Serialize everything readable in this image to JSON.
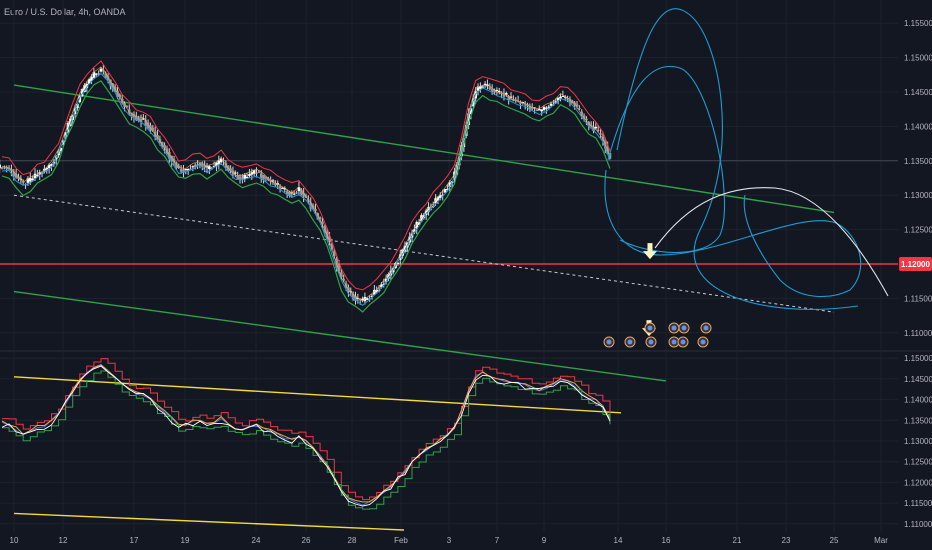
{
  "header": {
    "symbol_title": "Euro / U.S. Dollar, 4h, OANDA"
  },
  "colors": {
    "background": "#131722",
    "grid": "#1e222d",
    "candle": "#d1d4dc",
    "channel_green": "#2ea34a",
    "resistance_red": "#f23645",
    "projection_blue": "#1f9bd1",
    "projection_white": "#e0e3eb",
    "arrow": "#fff3c4",
    "trend_yellow": "#f5d939",
    "axis_text": "#b2b5be"
  },
  "chart_data": [
    {
      "type": "candlestick",
      "title": "",
      "x_axis": {
        "labels": [
          "10",
          "12",
          "17",
          "19",
          "24",
          "26",
          "28",
          "Feb",
          "3",
          "7",
          "9",
          "14",
          "16",
          "21",
          "23",
          "25",
          "Mar"
        ]
      },
      "y_axis": {
        "labels": [
          "1.15500",
          "1.15000",
          "1.14500",
          "1.14000",
          "1.13500",
          "1.13000",
          "1.12500",
          "1.12000",
          "1.11500",
          "1.11000"
        ],
        "range": [
          1.1075,
          1.1575
        ]
      },
      "price_line": {
        "value": 1.12,
        "label": "1.12000"
      },
      "series": [
        {
          "kind": "candles",
          "close_path": [
            1.1342,
            1.1338,
            1.1327,
            1.1316,
            1.1322,
            1.133,
            1.1336,
            1.1346,
            1.1364,
            1.1392,
            1.1418,
            1.1444,
            1.1462,
            1.1475,
            1.1482,
            1.1468,
            1.1452,
            1.1434,
            1.142,
            1.1412,
            1.1409,
            1.1398,
            1.1382,
            1.1368,
            1.1352,
            1.1338,
            1.1336,
            1.1344,
            1.1346,
            1.1338,
            1.1342,
            1.1351,
            1.1339,
            1.1329,
            1.1324,
            1.133,
            1.1334,
            1.1327,
            1.132,
            1.1313,
            1.1306,
            1.1302,
            1.1308,
            1.1294,
            1.128,
            1.1262,
            1.124,
            1.1208,
            1.1178,
            1.116,
            1.115,
            1.1146,
            1.1152,
            1.1162,
            1.1174,
            1.1188,
            1.1206,
            1.1224,
            1.1246,
            1.1262,
            1.1276,
            1.1288,
            1.13,
            1.1312,
            1.133,
            1.137,
            1.1418,
            1.1452,
            1.146,
            1.1455,
            1.145,
            1.1446,
            1.144,
            1.1436,
            1.1432,
            1.1426,
            1.1422,
            1.1428,
            1.1434,
            1.1444,
            1.144,
            1.1432,
            1.1416,
            1.1402,
            1.1395,
            1.138,
            1.1352
          ]
        },
        {
          "kind": "band-upper",
          "color": "red"
        },
        {
          "kind": "band-lower",
          "color": "green"
        },
        {
          "kind": "band-mid",
          "color": "blue"
        }
      ],
      "trend_lines": [
        {
          "name": "upper-channel",
          "color": "green",
          "from": [
            "10",
            1.146
          ],
          "to": [
            "25",
            1.1275
          ]
        },
        {
          "name": "lower-channel",
          "color": "green",
          "from": [
            "10",
            1.116
          ],
          "to": [
            "16",
            1.103
          ]
        },
        {
          "name": "mid-channel",
          "color": "white-dashed",
          "from": [
            "10",
            1.13
          ],
          "to": [
            "25",
            1.113
          ]
        }
      ],
      "projections": [
        {
          "name": "blue-loop-1",
          "color": "blue"
        },
        {
          "name": "blue-loop-2",
          "color": "blue"
        },
        {
          "name": "blue-loop-3",
          "color": "blue"
        },
        {
          "name": "white-arc",
          "color": "white"
        }
      ],
      "annotations": [
        {
          "type": "down-arrow",
          "at": "16",
          "level": 1.122
        },
        {
          "type": "down-arrow",
          "at": "16",
          "level": 1.111
        },
        {
          "type": "event-icons",
          "count": 5
        }
      ]
    },
    {
      "type": "line",
      "title": "",
      "y_axis": {
        "labels": [
          "1.15000",
          "1.14500",
          "1.14000",
          "1.13500",
          "1.13000",
          "1.12500",
          "1.12000",
          "1.11500",
          "1.11000"
        ],
        "range": [
          1.1085,
          1.1515
        ]
      },
      "series": [
        {
          "kind": "red"
        },
        {
          "kind": "blue"
        },
        {
          "kind": "orange"
        },
        {
          "kind": "green"
        },
        {
          "kind": "white"
        }
      ],
      "trend_lines": [
        {
          "name": "upper-yellow",
          "color": "yellow",
          "from": [
            "10",
            1.1455
          ],
          "to": [
            "14",
            1.1368
          ]
        },
        {
          "name": "lower-yellow",
          "color": "yellow",
          "from": [
            "10",
            1.1125
          ],
          "to": [
            "Feb",
            1.1085
          ]
        }
      ]
    }
  ]
}
